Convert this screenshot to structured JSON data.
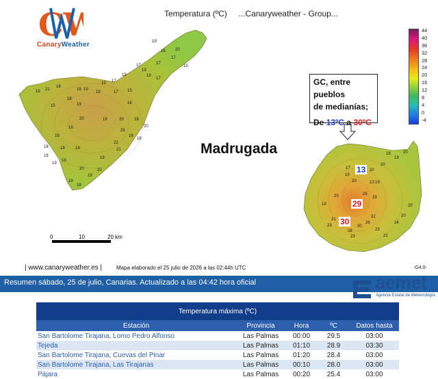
{
  "header": {
    "title": "Temperatura (ºC)     ...Canaryweather - Group..."
  },
  "brand": {
    "logo_letters": "CW",
    "name_part1": "Canary",
    "name_part2": "Weather"
  },
  "map": {
    "period_label": "Madrugada",
    "note_line1": "GC, entre pueblos",
    "note_line2": "de medianías;",
    "note_prefix": "De ",
    "note_min": "13ºC",
    "note_mid": " a ",
    "note_max": "30ºC",
    "badge_13": "13",
    "badge_29": "29",
    "badge_30": "30",
    "scale": {
      "t0": "0",
      "t10": "10",
      "t20": "20 km"
    },
    "legend_values": [
      "44",
      "40",
      "36",
      "32",
      "28",
      "24",
      "20",
      "16",
      "12",
      "8",
      "4",
      "0",
      "-4"
    ],
    "colors": {
      "low": "#1a3fe0",
      "high": "#7d1f5d",
      "land": "#b6b13a"
    },
    "tenerife_labels": [
      "17",
      "16",
      "20",
      "19",
      "15",
      "17",
      "17",
      "19",
      "19",
      "17",
      "19",
      "17",
      "19",
      "19",
      "15",
      "17",
      "15",
      "16",
      "18",
      "21",
      "18",
      "15",
      "18",
      "19",
      "16",
      "18",
      "20",
      "18",
      "19",
      "20",
      "19",
      "20",
      "19",
      "19",
      "18",
      "18",
      "18",
      "18",
      "19",
      "19",
      "21",
      "25",
      "22",
      "19",
      "20",
      "19",
      "20",
      "18",
      "19"
    ],
    "grancanaria_labels": [
      "18",
      "20",
      "19",
      "20",
      "20",
      "17",
      "19",
      "20",
      "13",
      "19",
      "20",
      "19",
      "26",
      "29",
      "22",
      "26",
      "30",
      "28",
      "21",
      "23",
      "23",
      "23",
      "24",
      "20",
      "20",
      "21"
    ],
    "footer_site": "| www.canaryweather.es |",
    "footer_map": "Mapa elaborado el 25 julio de 2026 a las 02:44h UTC",
    "footer_version": "-G4.0-"
  },
  "summary": {
    "text": "Resumen sábado, 25 de julio, Canarias. Actualizado a las 04:42 hora oficial"
  },
  "aemet": {
    "word": "aemet",
    "subtitle": "Agencia Estatal de Meteorología"
  },
  "table": {
    "title": "Temperatura máxima (ºC)",
    "headers": [
      "Estación",
      "Provincia",
      "Hora",
      "ºC",
      "Datos hasta"
    ],
    "rows": [
      [
        "San Bartolome Tirajana, Lomo Pedro Alfonso",
        "Las Palmas",
        "00:00",
        "29.5",
        "03:00"
      ],
      [
        "Tejeda",
        "Las Palmas",
        "01:10",
        "28.9",
        "03:30"
      ],
      [
        "San Bartolome Tirajana, Cuevas del Pinar",
        "Las Palmas",
        "01:20",
        "28.4",
        "03:00"
      ],
      [
        "San Bartolome Tirajana, Las Tirajanas",
        "Las Palmas",
        "00:10",
        "28.0",
        "03:00"
      ],
      [
        "Pájara",
        "Las Palmas",
        "00:20",
        "25.4",
        "03:00"
      ]
    ]
  }
}
